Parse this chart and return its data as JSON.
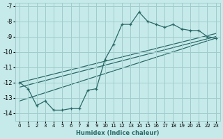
{
  "xlabel": "Humidex (Indice chaleur)",
  "background_color": "#c6eaea",
  "grid_color": "#a0cccc",
  "line_color": "#2a6868",
  "xlim": [
    -0.5,
    23.5
  ],
  "ylim": [
    -14.5,
    -6.8
  ],
  "yticks": [
    -7,
    -8,
    -9,
    -10,
    -11,
    -12,
    -13,
    -14
  ],
  "xticks": [
    0,
    1,
    2,
    3,
    4,
    5,
    6,
    7,
    8,
    9,
    10,
    11,
    12,
    13,
    14,
    15,
    16,
    17,
    18,
    19,
    20,
    21,
    22,
    23
  ],
  "curve1_x": [
    0,
    1,
    2,
    3,
    4,
    5,
    6,
    7,
    8,
    9,
    10,
    11,
    12,
    13,
    14,
    15,
    16,
    17,
    18,
    19,
    20,
    21,
    22,
    23
  ],
  "curve1_y": [
    -12.0,
    -12.4,
    -13.5,
    -13.2,
    -13.8,
    -13.8,
    -13.7,
    -13.7,
    -12.5,
    -12.4,
    -10.5,
    -9.5,
    -8.2,
    -8.2,
    -7.4,
    -8.0,
    -8.2,
    -8.4,
    -8.2,
    -8.5,
    -8.6,
    -8.6,
    -9.0,
    -9.1
  ],
  "trend1_x": [
    0,
    23
  ],
  "trend1_y": [
    -12.0,
    -8.8
  ],
  "trend2_x": [
    0,
    23
  ],
  "trend2_y": [
    -12.3,
    -9.0
  ],
  "trend3_x": [
    0,
    23
  ],
  "trend3_y": [
    -13.2,
    -9.1
  ]
}
